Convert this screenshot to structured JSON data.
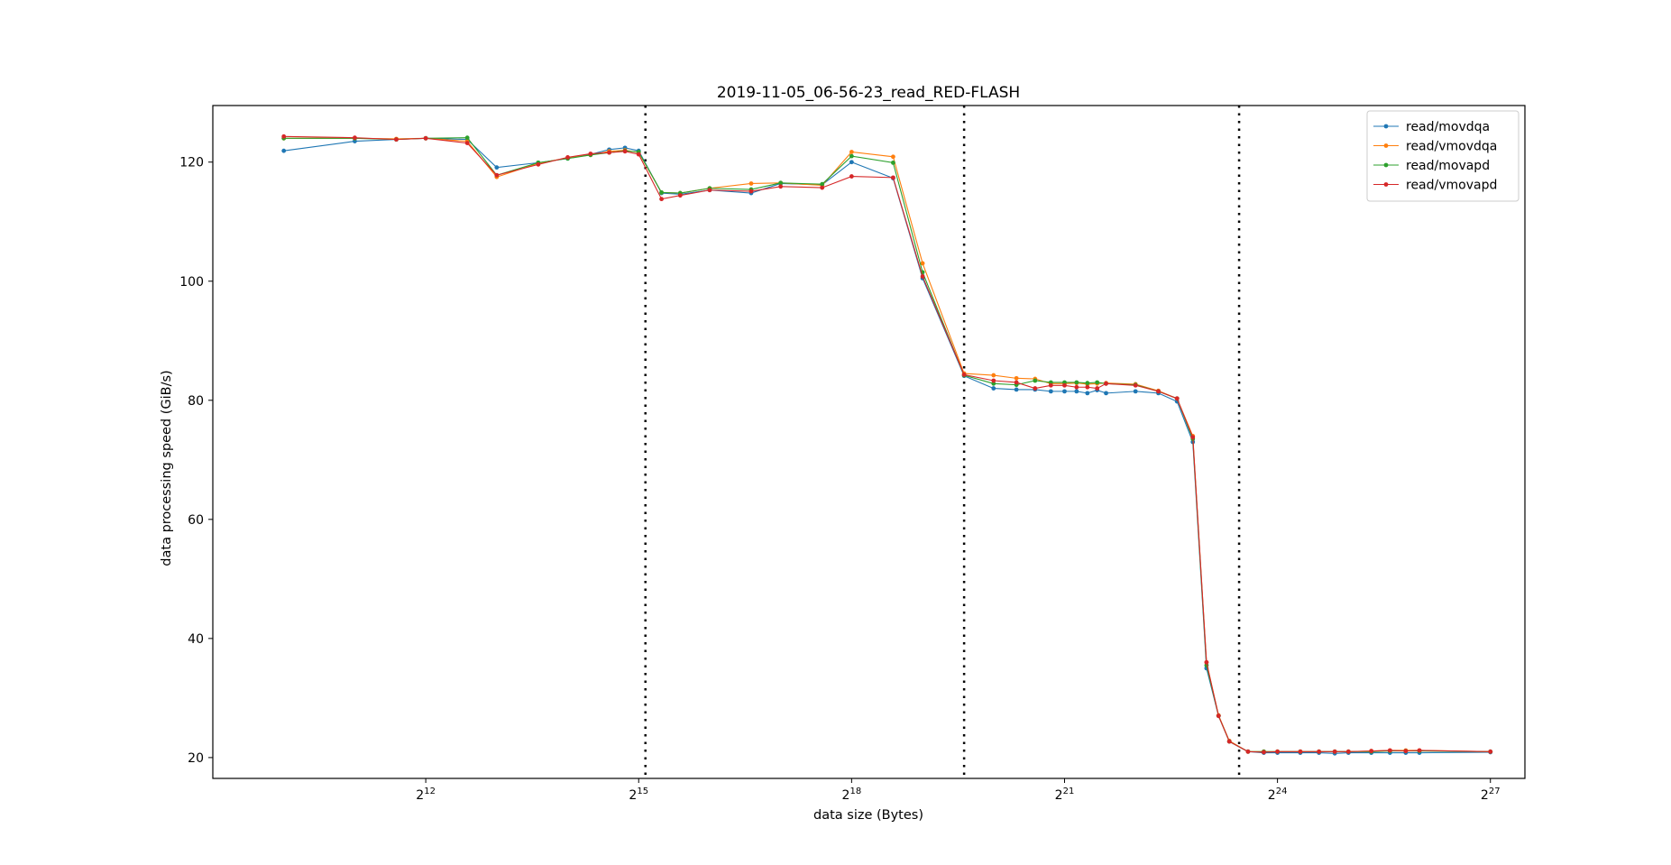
{
  "chart_data": {
    "type": "line",
    "title": "2019-11-05_06-56-23_read_RED-FLASH",
    "xlabel": "data size (Bytes)",
    "ylabel": "data processing speed (GiB/s)",
    "x_scale": "log2",
    "xlim": [
      512,
      188000000
    ],
    "ylim": [
      16.5,
      129.5
    ],
    "x_ticks": [
      {
        "value": 4096,
        "base": "2",
        "exp": "12"
      },
      {
        "value": 32768,
        "base": "2",
        "exp": "15"
      },
      {
        "value": 262144,
        "base": "2",
        "exp": "18"
      },
      {
        "value": 2097152,
        "base": "2",
        "exp": "21"
      },
      {
        "value": 16777216,
        "base": "2",
        "exp": "24"
      },
      {
        "value": 134217728,
        "base": "2",
        "exp": "27"
      }
    ],
    "y_ticks": [
      20,
      40,
      60,
      80,
      100,
      120
    ],
    "vlines": [
      35000,
      786432,
      11534336
    ],
    "legend_position": "upper right",
    "grid": false,
    "series": [
      {
        "name": "read/movdqa",
        "color": "#1f77b4",
        "points": [
          [
            1024,
            121.9
          ],
          [
            2048,
            123.5
          ],
          [
            3072,
            123.8
          ],
          [
            4096,
            124
          ],
          [
            6144,
            123.8
          ],
          [
            8192,
            119.1
          ],
          [
            12288,
            119.9
          ],
          [
            16384,
            120.6
          ],
          [
            20480,
            121.3
          ],
          [
            24576,
            122.1
          ],
          [
            28672,
            122.4
          ],
          [
            32768,
            121.9
          ],
          [
            40960,
            114.8
          ],
          [
            49152,
            114.6
          ],
          [
            65536,
            115.3
          ],
          [
            98304,
            114.8
          ],
          [
            131072,
            116.4
          ],
          [
            196608,
            116.2
          ],
          [
            262144,
            120
          ],
          [
            393216,
            117.3
          ],
          [
            524288,
            100.5
          ],
          [
            786432,
            84.1
          ],
          [
            1048576,
            82
          ],
          [
            1310720,
            81.8
          ],
          [
            1572864,
            81.8
          ],
          [
            1835008,
            81.5
          ],
          [
            2097152,
            81.5
          ],
          [
            2359296,
            81.5
          ],
          [
            2621440,
            81.2
          ],
          [
            2883584,
            81.7
          ],
          [
            3145728,
            81.2
          ],
          [
            4194304,
            81.5
          ],
          [
            5242880,
            81.2
          ],
          [
            6291456,
            79.8
          ],
          [
            7340032,
            73
          ],
          [
            8388608,
            35
          ],
          [
            9437184,
            27
          ],
          [
            10485760,
            22.7
          ],
          [
            12582912,
            21
          ],
          [
            14680064,
            20.8
          ],
          [
            16777216,
            20.8
          ],
          [
            20971520,
            20.8
          ],
          [
            25165824,
            20.8
          ],
          [
            29360128,
            20.7
          ],
          [
            33554432,
            20.8
          ],
          [
            41943040,
            20.8
          ],
          [
            50331648,
            20.8
          ],
          [
            58720256,
            20.8
          ],
          [
            67108864,
            20.8
          ],
          [
            134217728,
            20.9
          ]
        ]
      },
      {
        "name": "read/vmovdqa",
        "color": "#ff7f0e",
        "points": [
          [
            1024,
            124
          ],
          [
            2048,
            124
          ],
          [
            3072,
            123.9
          ],
          [
            4096,
            124
          ],
          [
            6144,
            123.5
          ],
          [
            8192,
            117.5
          ],
          [
            12288,
            119.8
          ],
          [
            16384,
            120.7
          ],
          [
            20480,
            121.2
          ],
          [
            24576,
            121.8
          ],
          [
            28672,
            122
          ],
          [
            32768,
            121.6
          ],
          [
            40960,
            114.9
          ],
          [
            49152,
            114.8
          ],
          [
            65536,
            115.6
          ],
          [
            98304,
            116.4
          ],
          [
            131072,
            116.5
          ],
          [
            196608,
            116.1
          ],
          [
            262144,
            121.7
          ],
          [
            393216,
            120.9
          ],
          [
            524288,
            103
          ],
          [
            786432,
            84.5
          ],
          [
            1048576,
            84.2
          ],
          [
            1310720,
            83.7
          ],
          [
            1572864,
            83.6
          ],
          [
            1835008,
            82.8
          ],
          [
            2097152,
            82.8
          ],
          [
            2359296,
            82.9
          ],
          [
            2621440,
            82.7
          ],
          [
            2883584,
            82.8
          ],
          [
            3145728,
            82.9
          ],
          [
            4194304,
            82.7
          ],
          [
            5242880,
            81.6
          ],
          [
            6291456,
            80.3
          ],
          [
            7340032,
            74
          ],
          [
            8388608,
            36
          ],
          [
            9437184,
            27.1
          ],
          [
            10485760,
            22.8
          ],
          [
            12582912,
            21
          ],
          [
            14680064,
            21
          ],
          [
            16777216,
            21
          ],
          [
            20971520,
            21
          ],
          [
            25165824,
            21
          ],
          [
            29360128,
            21
          ],
          [
            33554432,
            21
          ],
          [
            41943040,
            21.1
          ],
          [
            50331648,
            21.2
          ],
          [
            58720256,
            21.2
          ],
          [
            67108864,
            21.2
          ],
          [
            134217728,
            21
          ]
        ]
      },
      {
        "name": "read/movapd",
        "color": "#2ca02c",
        "points": [
          [
            1024,
            124
          ],
          [
            2048,
            124
          ],
          [
            3072,
            123.8
          ],
          [
            4096,
            124
          ],
          [
            6144,
            124.1
          ],
          [
            8192,
            117.8
          ],
          [
            12288,
            119.9
          ],
          [
            16384,
            120.6
          ],
          [
            20480,
            121.2
          ],
          [
            24576,
            121.6
          ],
          [
            28672,
            121.9
          ],
          [
            32768,
            121.7
          ],
          [
            40960,
            114.9
          ],
          [
            49152,
            114.8
          ],
          [
            65536,
            115.6
          ],
          [
            98304,
            115.4
          ],
          [
            131072,
            116.5
          ],
          [
            196608,
            116.3
          ],
          [
            262144,
            121
          ],
          [
            393216,
            119.9
          ],
          [
            524288,
            101.5
          ],
          [
            786432,
            84.2
          ],
          [
            1048576,
            82.8
          ],
          [
            1310720,
            82.6
          ],
          [
            1572864,
            83.3
          ],
          [
            1835008,
            83
          ],
          [
            2097152,
            83
          ],
          [
            2359296,
            83
          ],
          [
            2621440,
            82.9
          ],
          [
            2883584,
            83
          ],
          [
            3145728,
            82.8
          ],
          [
            4194304,
            82.6
          ],
          [
            5242880,
            81.5
          ],
          [
            6291456,
            80.3
          ],
          [
            7340032,
            73.5
          ],
          [
            8388608,
            35.5
          ],
          [
            9437184,
            27
          ],
          [
            10485760,
            22.7
          ],
          [
            12582912,
            21
          ],
          [
            14680064,
            21
          ],
          [
            16777216,
            21
          ],
          [
            20971520,
            21
          ],
          [
            25165824,
            21
          ],
          [
            29360128,
            21
          ],
          [
            33554432,
            21
          ],
          [
            41943040,
            21
          ],
          [
            50331648,
            21.1
          ],
          [
            58720256,
            21.1
          ],
          [
            67108864,
            21.1
          ],
          [
            134217728,
            21
          ]
        ]
      },
      {
        "name": "read/vmovapd",
        "color": "#d62728",
        "points": [
          [
            1024,
            124.3
          ],
          [
            2048,
            124.1
          ],
          [
            3072,
            123.8
          ],
          [
            4096,
            124
          ],
          [
            6144,
            123.2
          ],
          [
            8192,
            117.8
          ],
          [
            12288,
            119.6
          ],
          [
            16384,
            120.8
          ],
          [
            20480,
            121.4
          ],
          [
            24576,
            121.6
          ],
          [
            28672,
            121.8
          ],
          [
            32768,
            121.3
          ],
          [
            40960,
            113.8
          ],
          [
            49152,
            114.4
          ],
          [
            65536,
            115.3
          ],
          [
            98304,
            115.1
          ],
          [
            131072,
            115.9
          ],
          [
            196608,
            115.7
          ],
          [
            262144,
            117.6
          ],
          [
            393216,
            117.4
          ],
          [
            524288,
            100.8
          ],
          [
            786432,
            84.3
          ],
          [
            1048576,
            83.3
          ],
          [
            1310720,
            83
          ],
          [
            1572864,
            82
          ],
          [
            1835008,
            82.5
          ],
          [
            2097152,
            82.5
          ],
          [
            2359296,
            82.2
          ],
          [
            2621440,
            82.2
          ],
          [
            2883584,
            82
          ],
          [
            3145728,
            82.8
          ],
          [
            4194304,
            82.5
          ],
          [
            5242880,
            81.5
          ],
          [
            6291456,
            80.3
          ],
          [
            7340032,
            73.8
          ],
          [
            8388608,
            36
          ],
          [
            9437184,
            27
          ],
          [
            10485760,
            22.7
          ],
          [
            12582912,
            21
          ],
          [
            14680064,
            20.9
          ],
          [
            16777216,
            21
          ],
          [
            20971520,
            21
          ],
          [
            25165824,
            21
          ],
          [
            29360128,
            21
          ],
          [
            33554432,
            21
          ],
          [
            41943040,
            21.1
          ],
          [
            50331648,
            21.2
          ],
          [
            58720256,
            21.1
          ],
          [
            67108864,
            21.2
          ],
          [
            134217728,
            21
          ]
        ]
      }
    ]
  }
}
